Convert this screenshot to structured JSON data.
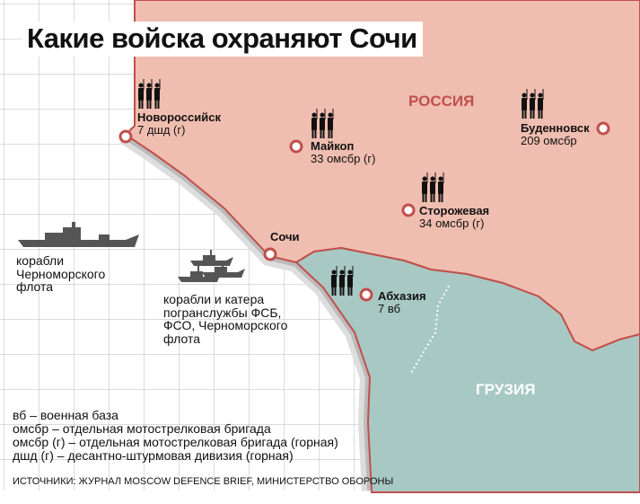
{
  "title": "Какие войска охраняют Сочи",
  "regions": {
    "russia": "РОССИЯ",
    "georgia": "ГРУЗИЯ"
  },
  "colors": {
    "russia": "#f0beb0",
    "georgia": "#a8c8c3",
    "border": "#c0504d",
    "sea_grid": "#b8b8b8"
  },
  "locations": [
    {
      "name": "Новороссийск",
      "unit": "7 дшд (г)"
    },
    {
      "name": "Майкоп",
      "unit": "33 омсбр (г)"
    },
    {
      "name": "Буденновск",
      "unit": "209 омсбр"
    },
    {
      "name": "Сторожевая",
      "unit": "34 омсбр (г)"
    },
    {
      "name": "Сочи",
      "unit": ""
    },
    {
      "name": "Абхазия",
      "unit": "7 вб"
    }
  ],
  "fleet_label": "корабли Черноморского флота",
  "border_ships_label": "корабли и катера погранслужбы ФСБ, ФСО, Черноморского флота",
  "legend": [
    "вб – военная база",
    "омсбр – отдельная мотострелковая бригада",
    "омсбр (г) – отдельная мотострелковая бригада (горная)",
    "дшд (г) – десантно-штурмовая дивизия (горная)"
  ],
  "sources": "ИСТОЧНИКИ: ЖУРНАЛ MOSCOW DEFENCE BRIEF, МИНИСТЕРСТВО ОБОРОНЫ",
  "icons": {
    "soldiers": "soldiers-icon",
    "ship": "warship-icon",
    "city": "city-marker-icon"
  }
}
